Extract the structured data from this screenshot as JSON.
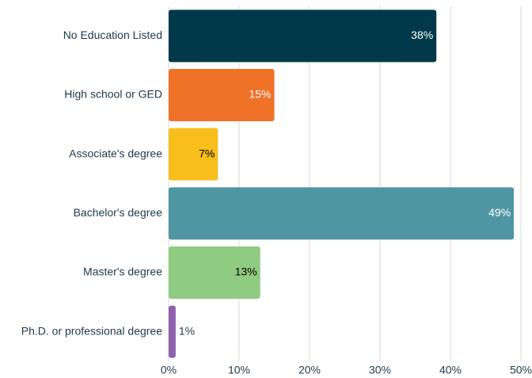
{
  "chart_data": {
    "type": "hbar",
    "categories": [
      "No Education Listed",
      "High school or GED",
      "Associate's degree",
      "Bachelor's degree",
      "Master's degree",
      "Ph.D. or professional degree"
    ],
    "values": [
      38,
      15,
      7,
      49,
      13,
      1
    ],
    "value_labels": [
      "38%",
      "15%",
      "7%",
      "49%",
      "13%",
      "1%"
    ],
    "colors": [
      "#003a4a",
      "#f07128",
      "#f7be1c",
      "#5096a2",
      "#8fcb80",
      "#8f62ad"
    ],
    "xlim": [
      0,
      50
    ],
    "xticks": [
      {
        "value": 0,
        "label": "0%"
      },
      {
        "value": 10,
        "label": "10%"
      },
      {
        "value": 20,
        "label": "20%"
      },
      {
        "value": 30,
        "label": "30%"
      },
      {
        "value": 40,
        "label": "40%"
      },
      {
        "value": 50,
        "label": "50%"
      }
    ],
    "grid": true
  }
}
